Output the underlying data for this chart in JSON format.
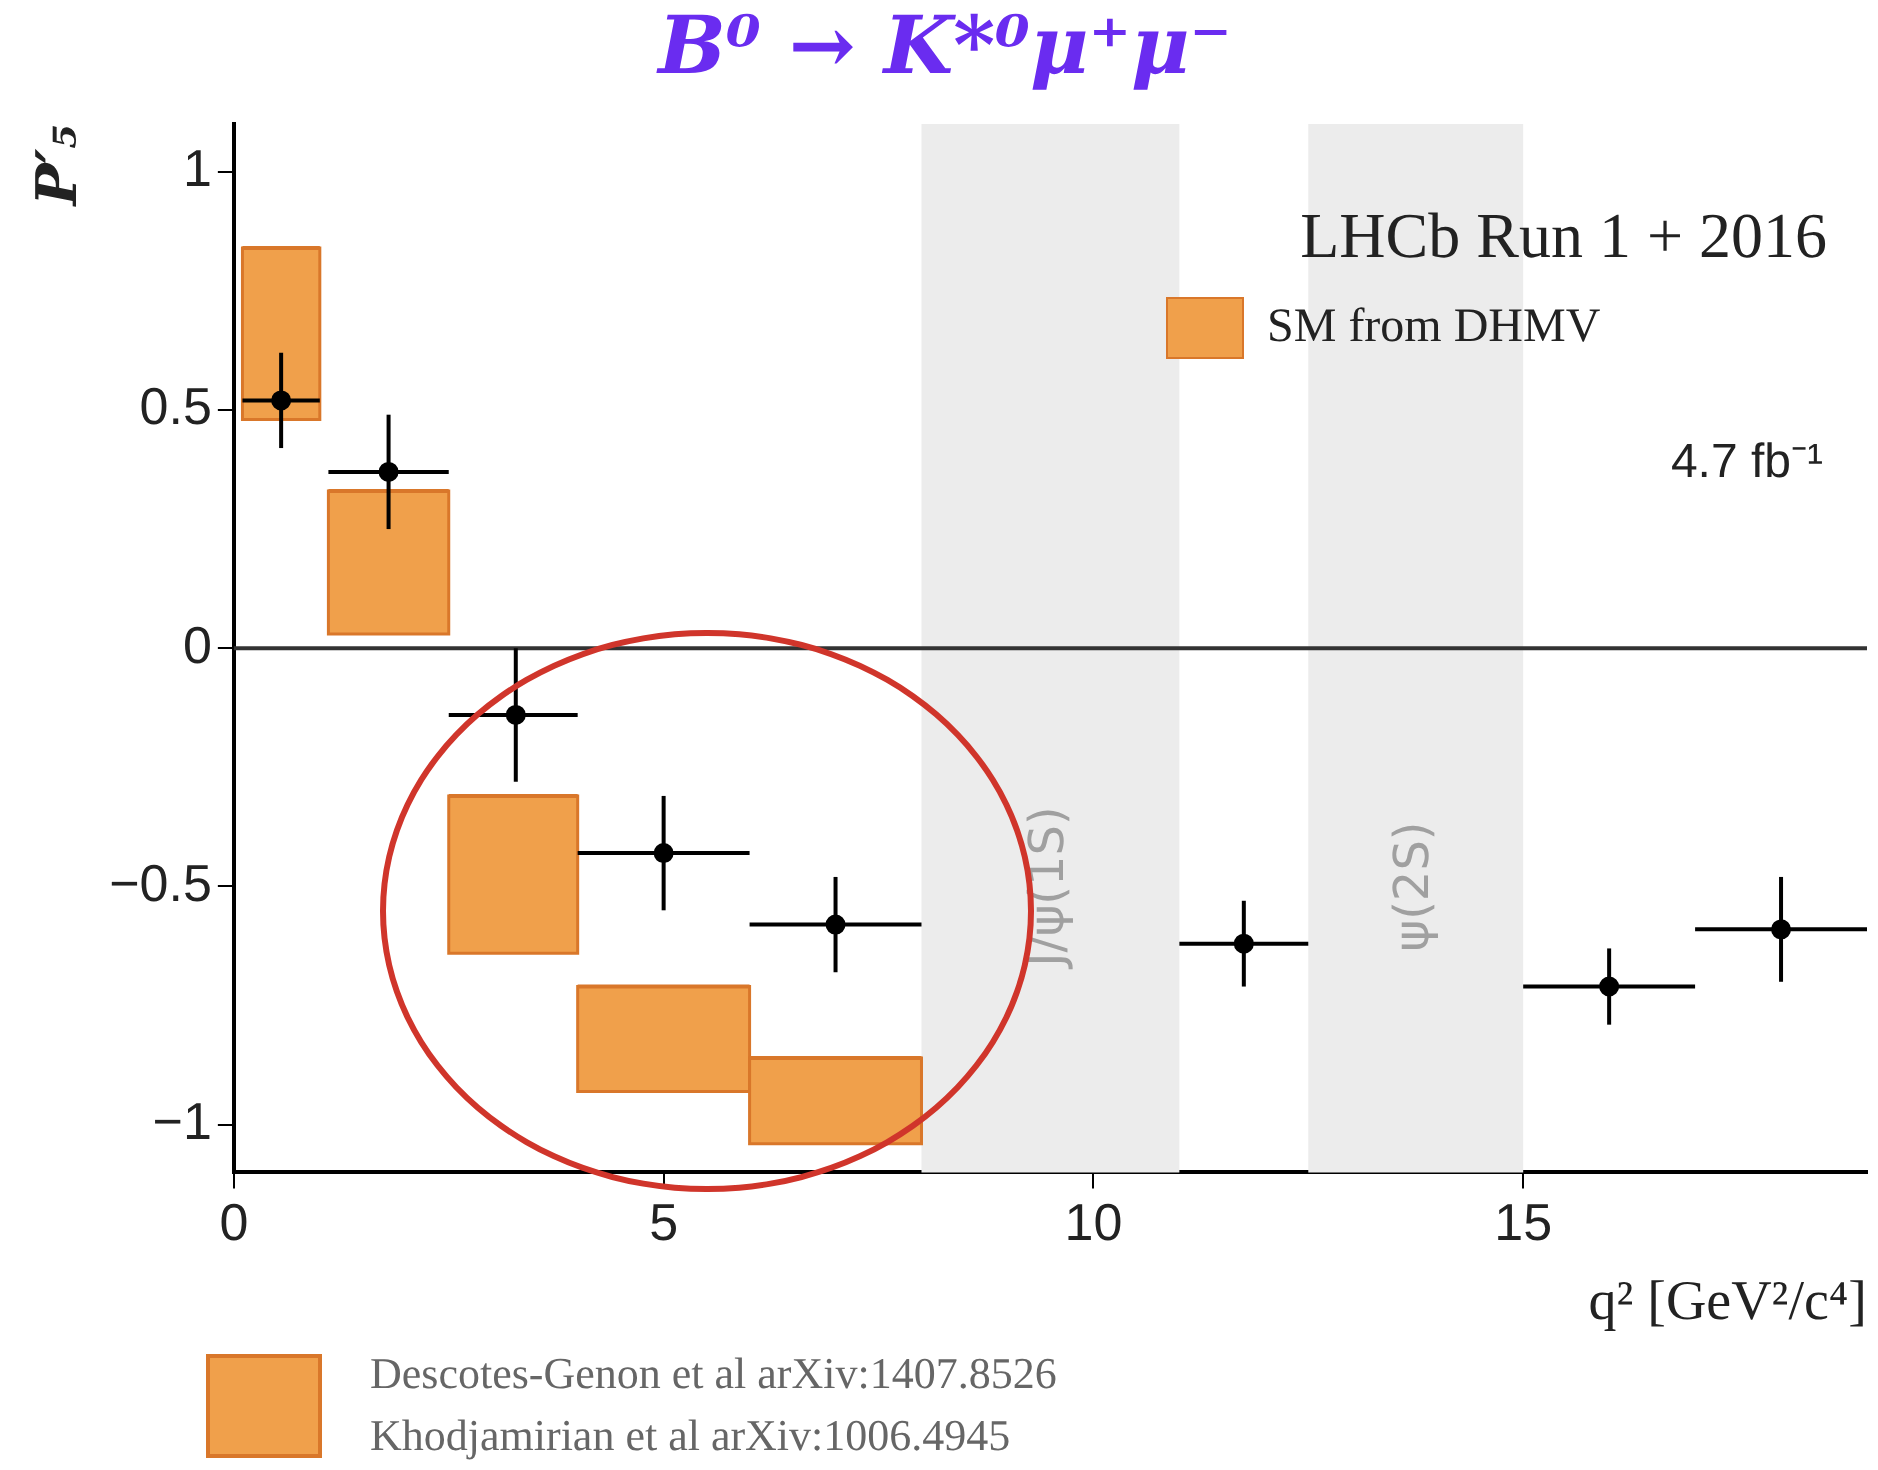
{
  "chart_data": {
    "type": "scatter",
    "title": "B⁰ → K*⁰μ⁺μ⁻",
    "xlabel": "q² [GeV²/c⁴]",
    "ylabel": "P′₅",
    "xlim": [
      0,
      19
    ],
    "xticks": [
      0,
      5,
      10,
      15
    ],
    "ylim": [
      -1.1,
      1.1
    ],
    "yticks": [
      {
        "value": -1,
        "label": "−1"
      },
      {
        "value": -0.5,
        "label": "−0.5"
      },
      0,
      0.5,
      1
    ],
    "grid": false,
    "legend": "top right",
    "marker": "circle",
    "series": [
      {
        "type": "bar",
        "name": "SM from DHMV",
        "color": "#f0a04b",
        "x": [
          0.55,
          1.8,
          3.25,
          5,
          7
        ],
        "xerrors": [
          [
            0.1,
            1.0
          ],
          [
            1.1,
            2.5
          ],
          [
            2.5,
            4
          ],
          [
            4,
            6
          ],
          [
            6,
            8
          ]
        ],
        "base": [
          0.48,
          0.03,
          -0.64,
          -0.93,
          -1.04
        ],
        "values": [
          0.36,
          0.3,
          0.33,
          0.22,
          0.18
        ]
      },
      {
        "color": "#000000",
        "x": [
          0.55,
          1.8,
          3.28,
          5,
          7,
          11.75,
          16,
          18
        ],
        "values": [
          0.52,
          0.37,
          -0.14,
          -0.43,
          -0.58,
          -0.62,
          -0.71,
          -0.59
        ],
        "errors": [
          0.1,
          0.12,
          0.14,
          0.12,
          0.1,
          0.09,
          0.08,
          0.11
        ],
        "xerrors": [
          [
            0.1,
            1.0
          ],
          [
            1.1,
            2.5
          ],
          [
            2.5,
            4
          ],
          [
            4,
            6
          ],
          [
            6,
            8
          ],
          [
            11,
            12.5
          ],
          [
            15,
            17
          ],
          [
            17,
            19
          ]
        ]
      }
    ],
    "bands": [
      {
        "axis": "x",
        "from": 8,
        "to": 11,
        "label": "J/ψ(1S)",
        "color": "#ececec"
      },
      {
        "axis": "x",
        "from": 12.5,
        "to": 15,
        "label": "ψ(2S)",
        "color": "#ececec"
      }
    ],
    "ref_lines": [
      {
        "axis": "y",
        "value": 0,
        "color": "#333333"
      }
    ],
    "annotations": [
      "LHCb Run 1 + 2016",
      "4.7 fb⁻¹",
      "Descotes-Genon et al arXiv:1407.8526",
      "Khodjamirian et al arXiv:1006.4945"
    ]
  }
}
